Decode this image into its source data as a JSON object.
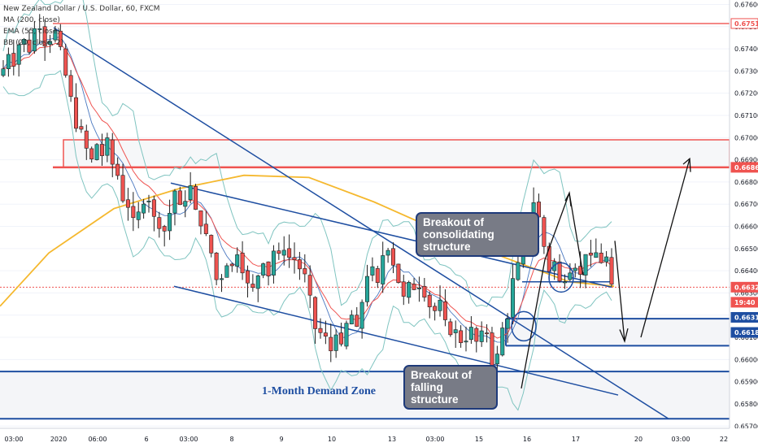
{
  "legend": {
    "symbol": "New Zealand Dollar / U.S. Dollar, 60, FXCM",
    "ma": "MA (200, close)",
    "ema": "EMA (55, close)",
    "bb": "BB (20, close, 2)"
  },
  "annotations": {
    "consolidating": [
      "Breakout of",
      "consolidating structure"
    ],
    "falling": [
      "Breakout of",
      "falling structure"
    ],
    "demand_zone": "1-Month Demand Zone"
  },
  "colors": {
    "up": "#26a69a",
    "down": "#ef5350",
    "candle_body_up": "#3a3a3a",
    "trendline": "#1e4ea1",
    "ma200": "#f5b82e",
    "ema55": "#ef5350",
    "bb": "#7fc4c0",
    "resistance": "#ef5350",
    "support": "#1e4ea1"
  },
  "chart_data": {
    "type": "candlestick",
    "symbol": "NZDUSD",
    "timeframe": "60",
    "ylim": [
      0.6569,
      0.6762
    ],
    "y_ticks": [
      "0.67600",
      "0.67500",
      "0.67400",
      "0.67300",
      "0.67200",
      "0.67100",
      "0.67000",
      "0.66900",
      "0.66800",
      "0.66700",
      "0.66600",
      "0.66500",
      "0.66400",
      "0.66300",
      "0.66200",
      "0.66100",
      "0.66000",
      "0.65900",
      "0.65800",
      "0.65700"
    ],
    "x_ticks": [
      "03:00",
      "2020",
      "06:00",
      "6",
      "03:00",
      "8",
      "9",
      "10",
      "13",
      "03:00",
      "15",
      "16",
      "17",
      "20",
      "03:00",
      "22"
    ],
    "price_labels": [
      {
        "value": "0.67514",
        "style": "red-outline"
      },
      {
        "value": "0.66866",
        "style": "red-fill"
      },
      {
        "value": "0.66326",
        "style": "red-fill"
      },
      {
        "value": "19:40",
        "style": "red-fill"
      },
      {
        "value": "0.66311",
        "style": "blue-fill"
      },
      {
        "value": "0.66184",
        "style": "blue-fill"
      }
    ],
    "path": [
      0.6731,
      0.6738,
      0.6733,
      0.6742,
      0.6744,
      0.6739,
      0.6749,
      0.675,
      0.6742,
      0.6744,
      0.6748,
      0.674,
      0.6728,
      0.6718,
      0.6705,
      0.6703,
      0.6695,
      0.669,
      0.6697,
      0.6692,
      0.6699,
      0.6688,
      0.6683,
      0.6672,
      0.6669,
      0.6663,
      0.6666,
      0.6671,
      0.6672,
      0.6664,
      0.666,
      0.6658,
      0.6666,
      0.6676,
      0.6669,
      0.6672,
      0.6678,
      0.6667,
      0.6661,
      0.6656,
      0.6648,
      0.6636,
      0.6637,
      0.6643,
      0.6642,
      0.6648,
      0.664,
      0.6634,
      0.6632,
      0.6638,
      0.6644,
      0.6638,
      0.6649,
      0.6647,
      0.665,
      0.6646,
      0.6645,
      0.6641,
      0.6638,
      0.6628,
      0.6614,
      0.6612,
      0.661,
      0.6604,
      0.6612,
      0.6606,
      0.6616,
      0.662,
      0.6614,
      0.6626,
      0.6638,
      0.6641,
      0.6634,
      0.6647,
      0.665,
      0.6643,
      0.6635,
      0.6628,
      0.6634,
      0.6632,
      0.6633,
      0.6629,
      0.6624,
      0.6622,
      0.6626,
      0.6617,
      0.6612,
      0.6613,
      0.6608,
      0.6609,
      0.6614,
      0.6608,
      0.6612,
      0.6612,
      0.6598,
      0.6602,
      0.6614,
      0.6619,
      0.6636,
      0.6643,
      0.6652,
      0.6663,
      0.6671,
      0.6664,
      0.6651,
      0.664,
      0.6644,
      0.6635,
      0.6636,
      0.664,
      0.6642,
      0.6638,
      0.6648,
      0.6646,
      0.6648,
      0.6644,
      0.6646,
      0.6633
    ],
    "ma200": [
      [
        0,
        0.6624
      ],
      [
        60,
        0.6648
      ],
      [
        140,
        0.6668
      ],
      [
        220,
        0.6677
      ],
      [
        300,
        0.6683
      ],
      [
        380,
        0.6682
      ],
      [
        460,
        0.6671
      ],
      [
        540,
        0.6658
      ],
      [
        620,
        0.6646
      ],
      [
        700,
        0.6635
      ],
      [
        755,
        0.6633
      ]
    ],
    "levels": [
      {
        "name": "resistance",
        "value": 0.67514
      },
      {
        "name": "resistance_zone",
        "low": 0.66866,
        "high": 0.6699
      },
      {
        "name": "support_top",
        "value": 0.66184
      },
      {
        "name": "support_2",
        "value": 0.66062
      },
      {
        "name": "demand_zone",
        "low": 0.65733,
        "high": 0.65946
      }
    ]
  }
}
